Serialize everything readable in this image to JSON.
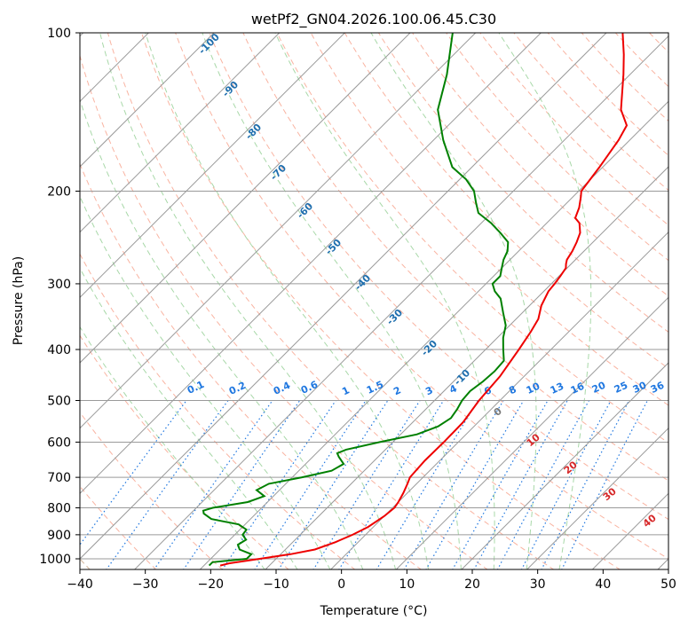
{
  "colors": {
    "temperature": "#ee0000",
    "dewpoint": "#008000",
    "isotherm": "#9a9a9a",
    "isobar": "#9a9a9a",
    "dry_adiabat": "#f7a08a",
    "moist_adiabat": "#a8d8a8",
    "mixing_ratio": "#1f77e0",
    "dry_adiabat_label": "#d62728",
    "moist_adiabat_label": "#1f6fae",
    "far_adiabat": "#d8bfa8"
  },
  "chart_data": {
    "type": "skew-t log-p sounding",
    "title": "wetPf2_GN04.2026.100.06.45.C30",
    "xlabel": "Temperature (°C)",
    "ylabel": "Pressure (hPa)",
    "xlim": [
      -40,
      50
    ],
    "ylim": [
      1050,
      100
    ],
    "x_ticks": [
      -40,
      -30,
      -20,
      -10,
      0,
      10,
      20,
      30,
      40,
      50
    ],
    "x_tick_labels": [
      "−40",
      "−30",
      "−20",
      "−10",
      "0",
      "10",
      "20",
      "30",
      "40",
      "50"
    ],
    "y_ticks": [
      1000,
      900,
      800,
      700,
      600,
      500,
      400,
      300,
      200,
      100
    ],
    "y_tick_labels": [
      "1000",
      "900",
      "800",
      "700",
      "600",
      "500",
      "400",
      "300",
      "200",
      "100"
    ],
    "grid": true,
    "series": [
      {
        "name": "Temperature",
        "color": "red",
        "points": [
          [
            1030,
            -17.5
          ],
          [
            1020,
            -16.5
          ],
          [
            1000,
            -12.5
          ],
          [
            980,
            -8.5
          ],
          [
            960,
            -5.5
          ],
          [
            930,
            -3.5
          ],
          [
            900,
            -2
          ],
          [
            870,
            -0.8
          ],
          [
            830,
            0
          ],
          [
            800,
            0.3
          ],
          [
            780,
            0
          ],
          [
            750,
            -0.6
          ],
          [
            720,
            -1.4
          ],
          [
            700,
            -2
          ],
          [
            650,
            -2.3
          ],
          [
            600,
            -2.2
          ],
          [
            550,
            -2.3
          ],
          [
            500,
            -3.2
          ],
          [
            450,
            -3.7
          ],
          [
            400,
            -4.9
          ],
          [
            370,
            -5.8
          ],
          [
            350,
            -6.6
          ],
          [
            330,
            -8.2
          ],
          [
            310,
            -9.3
          ],
          [
            300,
            -9.5
          ],
          [
            290,
            -9.8
          ],
          [
            280,
            -10.2
          ],
          [
            275,
            -10.8
          ],
          [
            270,
            -11.3
          ],
          [
            260,
            -11.8
          ],
          [
            250,
            -12.5
          ],
          [
            240,
            -13.4
          ],
          [
            230,
            -15
          ],
          [
            225,
            -16.4
          ],
          [
            215,
            -17.4
          ],
          [
            205,
            -18.8
          ],
          [
            200,
            -19.6
          ],
          [
            180,
            -20.5
          ],
          [
            160,
            -21.7
          ],
          [
            150,
            -22.7
          ],
          [
            140,
            -26
          ],
          [
            120,
            -31
          ],
          [
            110,
            -34
          ],
          [
            100,
            -37.5
          ]
        ]
      },
      {
        "name": "Dewpoint",
        "color": "green",
        "points": [
          [
            1030,
            -19.2
          ],
          [
            1015,
            -19.2
          ],
          [
            1000,
            -14.5
          ],
          [
            980,
            -14.5
          ],
          [
            960,
            -17
          ],
          [
            940,
            -18
          ],
          [
            920,
            -17.5
          ],
          [
            900,
            -18.8
          ],
          [
            880,
            -19
          ],
          [
            860,
            -21
          ],
          [
            840,
            -26
          ],
          [
            820,
            -28
          ],
          [
            810,
            -28.5
          ],
          [
            800,
            -27.5
          ],
          [
            780,
            -23
          ],
          [
            760,
            -21.4
          ],
          [
            740,
            -23.5
          ],
          [
            720,
            -22.6
          ],
          [
            700,
            -18.5
          ],
          [
            680,
            -15
          ],
          [
            660,
            -14.2
          ],
          [
            640,
            -16
          ],
          [
            630,
            -16.8
          ],
          [
            620,
            -16
          ],
          [
            600,
            -12
          ],
          [
            580,
            -7.5
          ],
          [
            560,
            -5.5
          ],
          [
            540,
            -4.8
          ],
          [
            520,
            -5.2
          ],
          [
            500,
            -5.8
          ],
          [
            480,
            -6
          ],
          [
            460,
            -5.5
          ],
          [
            440,
            -5.3
          ],
          [
            420,
            -5.5
          ],
          [
            400,
            -7.3
          ],
          [
            380,
            -9.1
          ],
          [
            360,
            -10.6
          ],
          [
            340,
            -13
          ],
          [
            320,
            -15.5
          ],
          [
            310,
            -17.5
          ],
          [
            300,
            -19
          ],
          [
            290,
            -19
          ],
          [
            280,
            -20
          ],
          [
            270,
            -21
          ],
          [
            260,
            -21.7
          ],
          [
            250,
            -23
          ],
          [
            240,
            -25.6
          ],
          [
            230,
            -28.5
          ],
          [
            220,
            -32
          ],
          [
            210,
            -34
          ],
          [
            200,
            -36
          ],
          [
            190,
            -39
          ],
          [
            180,
            -43
          ],
          [
            160,
            -48.5
          ],
          [
            140,
            -54
          ],
          [
            120,
            -58
          ],
          [
            100,
            -63.5
          ]
        ]
      }
    ],
    "dry_adiabat_labels": [
      "0",
      "10",
      "20",
      "30",
      "40"
    ],
    "moist_adiabat_labels": [
      "-100",
      "-90",
      "-80",
      "-70",
      "-60",
      "-50",
      "-40",
      "-30",
      "-20",
      "-10"
    ],
    "mixing_ratio_labels": [
      "0.1",
      "0.2",
      "0.4",
      "0.6",
      "1",
      "1.5",
      "2",
      "3",
      "4",
      "6",
      "8",
      "10",
      "13",
      "16",
      "20",
      "25",
      "30",
      "36"
    ],
    "dry_adiabat_thetas_c": [
      -30,
      -20,
      -10,
      0,
      10,
      20,
      30,
      40,
      50,
      60,
      70,
      80,
      90,
      100,
      110,
      120,
      130,
      140,
      150,
      160,
      170,
      180,
      190,
      200
    ],
    "moist_adiabat_starts_c": [
      -10,
      -5,
      0,
      5,
      10,
      15,
      20,
      25,
      30,
      35
    ],
    "mixing_ratios_gkg": [
      0.1,
      0.2,
      0.4,
      0.6,
      1,
      1.5,
      2,
      3,
      4,
      6,
      8,
      10,
      13,
      16,
      20,
      25,
      30,
      36
    ]
  }
}
